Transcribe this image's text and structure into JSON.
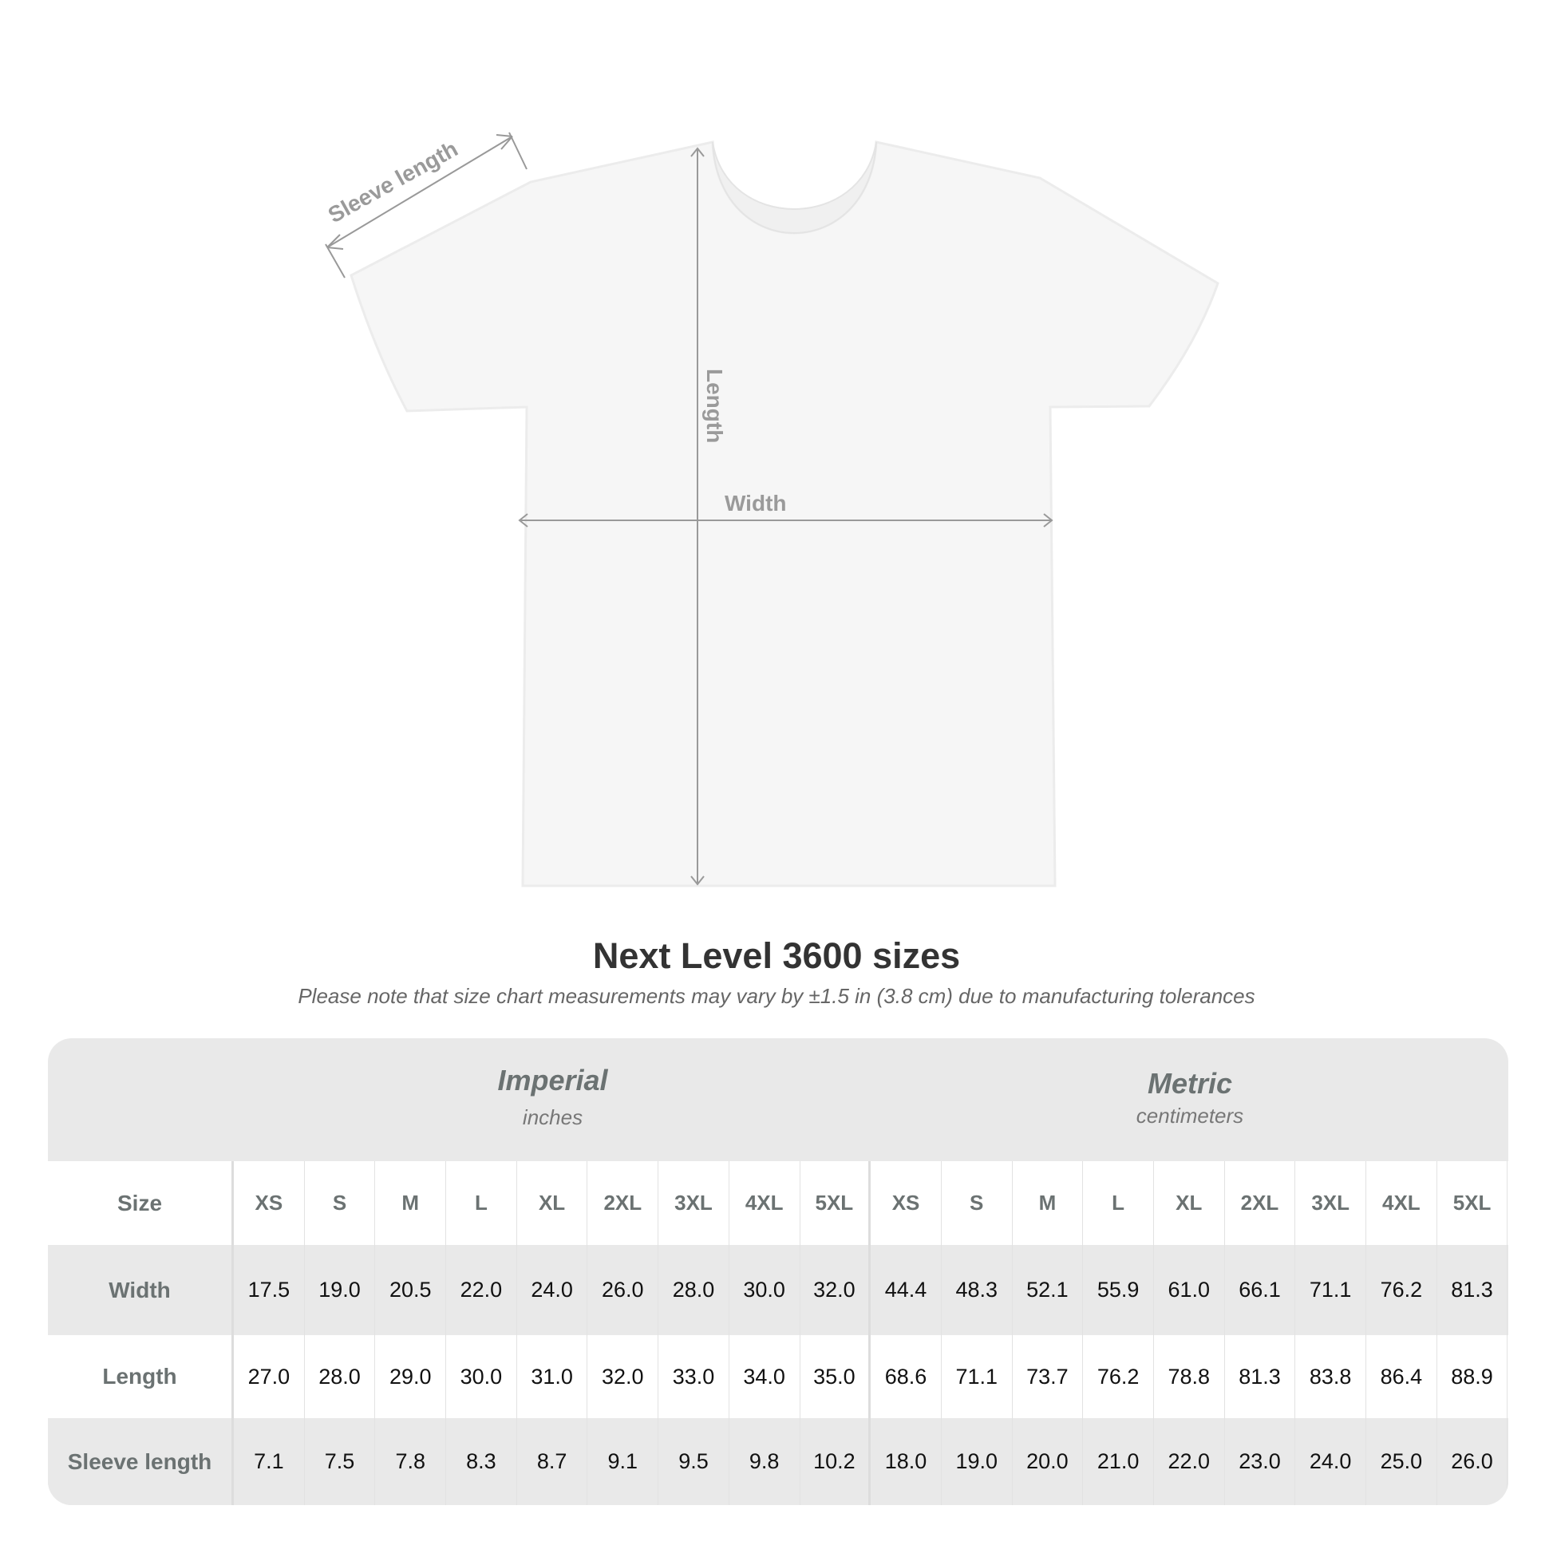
{
  "diagram": {
    "labels": {
      "sleeve": "Sleeve length",
      "length": "Length",
      "width": "Width"
    },
    "shirt_color": "#f6f6f6",
    "measure_color": "#999999"
  },
  "title": "Next Level 3600 sizes",
  "subtitle": "Please note that size chart measurements may vary by ±1.5 in (3.8 cm) due to manufacturing tolerances",
  "table": {
    "imperial": {
      "title": "Imperial",
      "unit": "inches"
    },
    "metric": {
      "title": "Metric",
      "unit": "centimeters"
    },
    "size_label": "Size",
    "sizes": [
      "XS",
      "S",
      "M",
      "L",
      "XL",
      "2XL",
      "3XL",
      "4XL",
      "5XL"
    ],
    "rows": [
      {
        "label": "Width",
        "imperial": [
          "17.5",
          "19.0",
          "20.5",
          "22.0",
          "24.0",
          "26.0",
          "28.0",
          "30.0",
          "32.0"
        ],
        "metric": [
          "44.4",
          "48.3",
          "52.1",
          "55.9",
          "61.0",
          "66.1",
          "71.1",
          "76.2",
          "81.3"
        ]
      },
      {
        "label": "Length",
        "imperial": [
          "27.0",
          "28.0",
          "29.0",
          "30.0",
          "31.0",
          "32.0",
          "33.0",
          "34.0",
          "35.0"
        ],
        "metric": [
          "68.6",
          "71.1",
          "73.7",
          "76.2",
          "78.8",
          "81.3",
          "83.8",
          "86.4",
          "88.9"
        ]
      },
      {
        "label": "Sleeve length",
        "imperial": [
          "7.1",
          "7.5",
          "7.8",
          "8.3",
          "8.7",
          "9.1",
          "9.5",
          "9.8",
          "10.2"
        ],
        "metric": [
          "18.0",
          "19.0",
          "20.0",
          "21.0",
          "22.0",
          "23.0",
          "24.0",
          "25.0",
          "26.0"
        ]
      }
    ]
  }
}
